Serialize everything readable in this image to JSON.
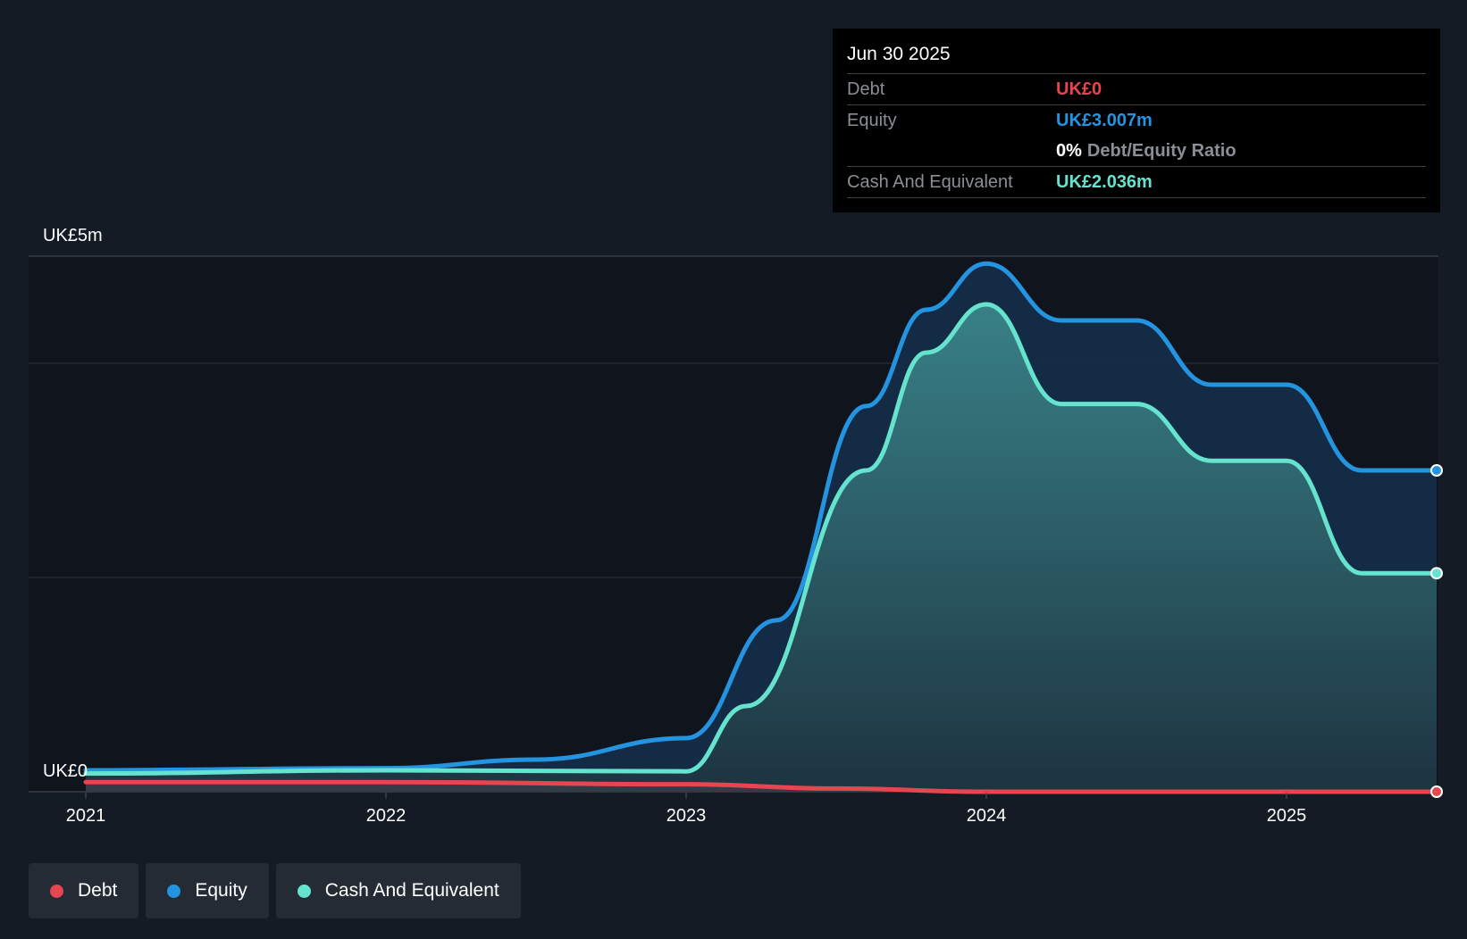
{
  "chart_data": {
    "type": "area",
    "y_axis_labels": {
      "top": "UK£5m",
      "bottom": "UK£0"
    },
    "ylim": [
      0,
      5.0
    ],
    "x_ticks": [
      "2021",
      "2022",
      "2023",
      "2024",
      "2025"
    ],
    "x_range": [
      2020.8,
      2025.5
    ],
    "series": [
      {
        "name": "Equity",
        "color": "#2494e0",
        "points": [
          [
            2021.0,
            0.2
          ],
          [
            2022.0,
            0.22
          ],
          [
            2022.5,
            0.3
          ],
          [
            2023.0,
            0.5
          ],
          [
            2023.3,
            1.6
          ],
          [
            2023.6,
            3.6
          ],
          [
            2023.8,
            4.5
          ],
          [
            2024.0,
            4.93
          ],
          [
            2024.25,
            4.4
          ],
          [
            2024.5,
            4.4
          ],
          [
            2024.75,
            3.8
          ],
          [
            2025.0,
            3.8
          ],
          [
            2025.25,
            3.0
          ],
          [
            2025.5,
            3.0
          ]
        ]
      },
      {
        "name": "Cash And Equivalent",
        "color": "#66e3cf",
        "points": [
          [
            2021.0,
            0.17
          ],
          [
            2022.0,
            0.2
          ],
          [
            2023.0,
            0.19
          ],
          [
            2023.2,
            0.8
          ],
          [
            2023.6,
            3.0
          ],
          [
            2023.8,
            4.1
          ],
          [
            2024.0,
            4.55
          ],
          [
            2024.25,
            3.62
          ],
          [
            2024.5,
            3.62
          ],
          [
            2024.75,
            3.09
          ],
          [
            2025.0,
            3.09
          ],
          [
            2025.25,
            2.04
          ],
          [
            2025.5,
            2.04
          ]
        ]
      },
      {
        "name": "Debt",
        "color": "#e5464f",
        "points": [
          [
            2021.0,
            0.09
          ],
          [
            2022.0,
            0.09
          ],
          [
            2023.0,
            0.07
          ],
          [
            2023.5,
            0.03
          ],
          [
            2024.0,
            0.0
          ],
          [
            2025.0,
            0.0
          ],
          [
            2025.5,
            0.0
          ]
        ]
      }
    ]
  },
  "tooltip": {
    "date": "Jun 30 2025",
    "debt_label": "Debt",
    "debt_value": "UK£0",
    "equity_label": "Equity",
    "equity_value": "UK£3.007m",
    "ratio_value": "0%",
    "ratio_label": "Debt/Equity Ratio",
    "cash_label": "Cash And Equivalent",
    "cash_value": "UK£2.036m",
    "colors": {
      "debt": "#e5464f",
      "equity": "#2494e0",
      "cash": "#66e3cf"
    }
  },
  "legend": [
    {
      "label": "Debt",
      "color": "#e5464f"
    },
    {
      "label": "Equity",
      "color": "#2494e0"
    },
    {
      "label": "Cash And Equivalent",
      "color": "#66e3cf"
    }
  ]
}
